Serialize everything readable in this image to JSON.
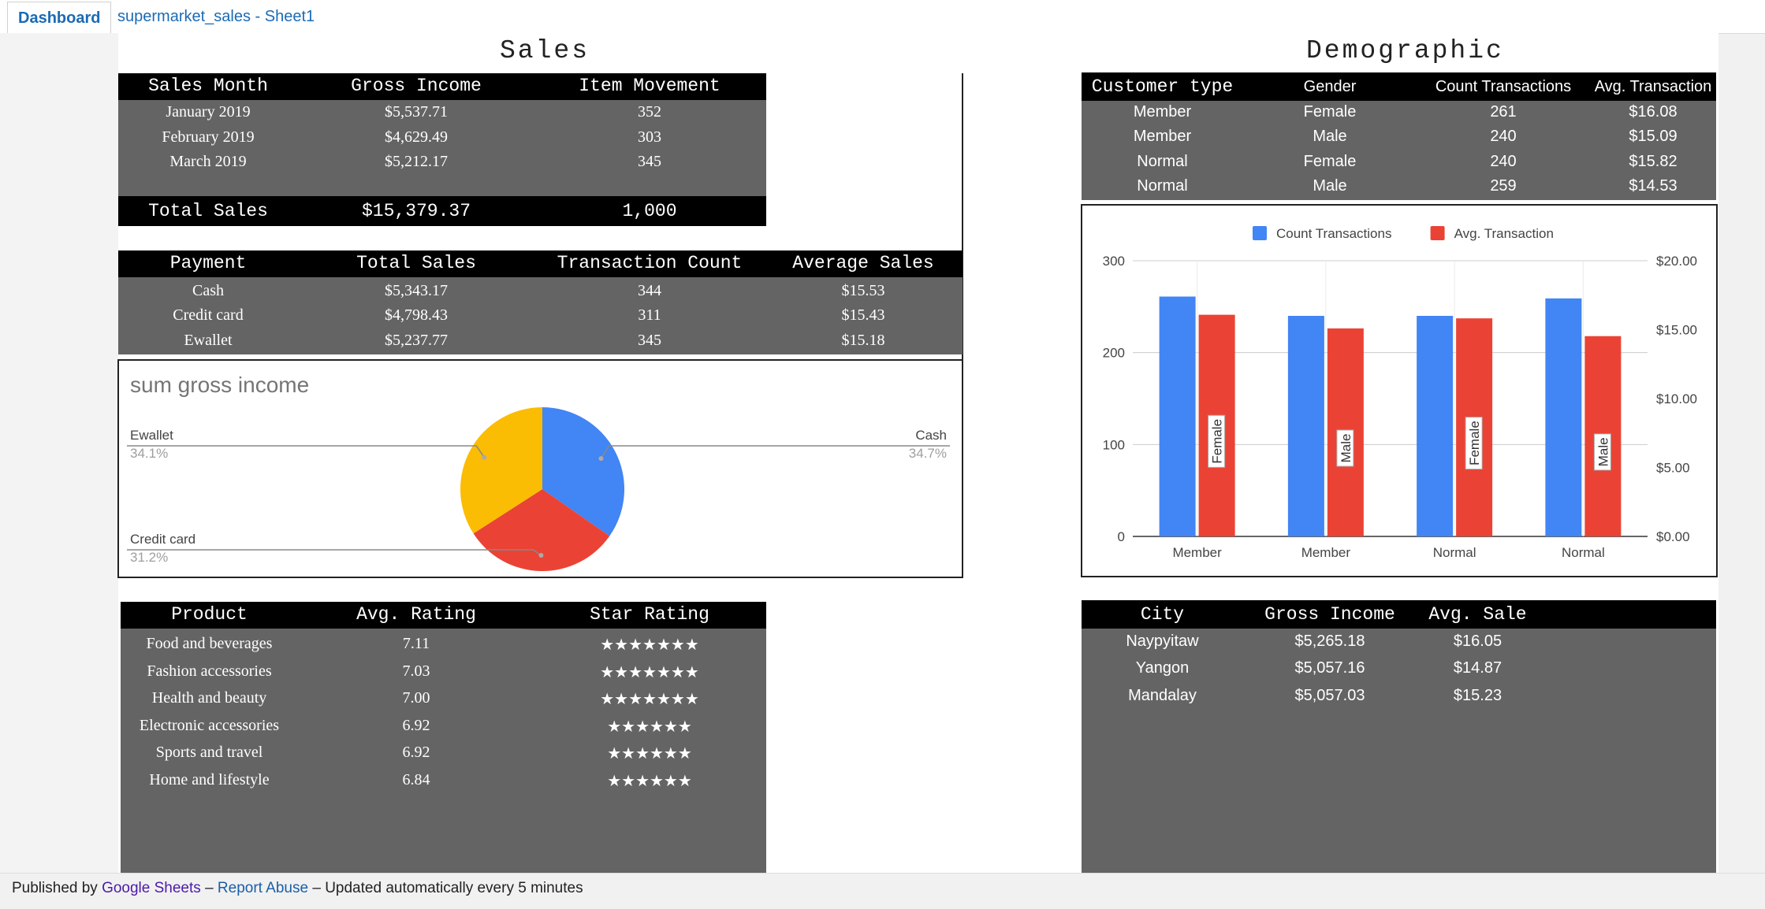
{
  "tabs": {
    "dashboard": "Dashboard",
    "sheet": "supermarket_sales - Sheet1"
  },
  "sales": {
    "title": "Sales",
    "monthly": {
      "headers": [
        "Sales Month",
        "Gross Income",
        "Item Movement"
      ],
      "rows": [
        [
          "January 2019",
          "$5,537.71",
          "352"
        ],
        [
          "February 2019",
          "$4,629.49",
          "303"
        ],
        [
          "March 2019",
          "$5,212.17",
          "345"
        ]
      ],
      "total": [
        "Total Sales",
        "$15,379.37",
        "1,000"
      ]
    },
    "payment": {
      "headers": [
        "Payment",
        "Total Sales",
        "Transaction Count",
        "Average Sales"
      ],
      "rows": [
        [
          "Cash",
          "$5,343.17",
          "344",
          "$15.53"
        ],
        [
          "Credit card",
          "$4,798.43",
          "311",
          "$15.43"
        ],
        [
          "Ewallet",
          "$5,237.77",
          "345",
          "$15.18"
        ]
      ]
    },
    "product": {
      "headers": [
        "Product",
        "Avg. Rating",
        "Star Rating"
      ],
      "rows": [
        [
          "Food and beverages",
          "7.11",
          "★★★★★★★"
        ],
        [
          "Fashion accessories",
          "7.03",
          "★★★★★★★"
        ],
        [
          "Health and beauty",
          "7.00",
          "★★★★★★★"
        ],
        [
          "Electronic accessories",
          "6.92",
          "★★★★★★"
        ],
        [
          "Sports and travel",
          "6.92",
          "★★★★★★"
        ],
        [
          "Home and lifestyle",
          "6.84",
          "★★★★★★"
        ]
      ]
    }
  },
  "demographic": {
    "title": "Demographic",
    "customers": {
      "headers": [
        "Customer type",
        "Gender",
        "Count Transactions",
        "Avg. Transaction"
      ],
      "rows": [
        [
          "Member",
          "Female",
          "261",
          "$16.08"
        ],
        [
          "Member",
          "Male",
          "240",
          "$15.09"
        ],
        [
          "Normal",
          "Female",
          "240",
          "$15.82"
        ],
        [
          "Normal",
          "Male",
          "259",
          "$14.53"
        ]
      ]
    },
    "city": {
      "headers": [
        "City",
        "Gross Income",
        "Avg. Sale"
      ],
      "rows": [
        [
          "Naypyitaw",
          "$5,265.18",
          "$16.05"
        ],
        [
          "Yangon",
          "$5,057.16",
          "$14.87"
        ],
        [
          "Mandalay",
          "$5,057.03",
          "$15.23"
        ]
      ]
    }
  },
  "chart_data": [
    {
      "type": "pie",
      "title": "sum gross income",
      "slices": [
        {
          "label": "Cash",
          "value": 34.7,
          "pct_label": "34.7%",
          "color": "#4285f4"
        },
        {
          "label": "Credit card",
          "value": 31.2,
          "pct_label": "31.2%",
          "color": "#ea4335"
        },
        {
          "label": "Ewallet",
          "value": 34.1,
          "pct_label": "34.1%",
          "color": "#fbbc04"
        }
      ]
    },
    {
      "type": "bar",
      "categories": [
        "Member",
        "Member",
        "Normal",
        "Normal"
      ],
      "bar_labels": [
        "Female",
        "Male",
        "Female",
        "Male"
      ],
      "series": [
        {
          "name": "Count Transactions",
          "axis": "left",
          "values": [
            261,
            240,
            240,
            259
          ],
          "color": "#4285f4"
        },
        {
          "name": "Avg. Transaction",
          "axis": "right",
          "values": [
            16.08,
            15.09,
            15.82,
            14.53
          ],
          "color": "#ea4335"
        }
      ],
      "ylim_left": [
        0,
        300
      ],
      "ylim_right": [
        0,
        20
      ],
      "left_ticks": [
        "0",
        "100",
        "200",
        "300"
      ],
      "right_ticks": [
        "$0.00",
        "$5.00",
        "$10.00",
        "$15.00",
        "$20.00"
      ],
      "legend": "top",
      "grid": true
    }
  ],
  "footer": {
    "prefix": "Published by",
    "google": "Google Sheets",
    "sep1": "–",
    "report": "Report Abuse",
    "sep2": "–",
    "updated": "Updated automatically every 5 minutes"
  }
}
